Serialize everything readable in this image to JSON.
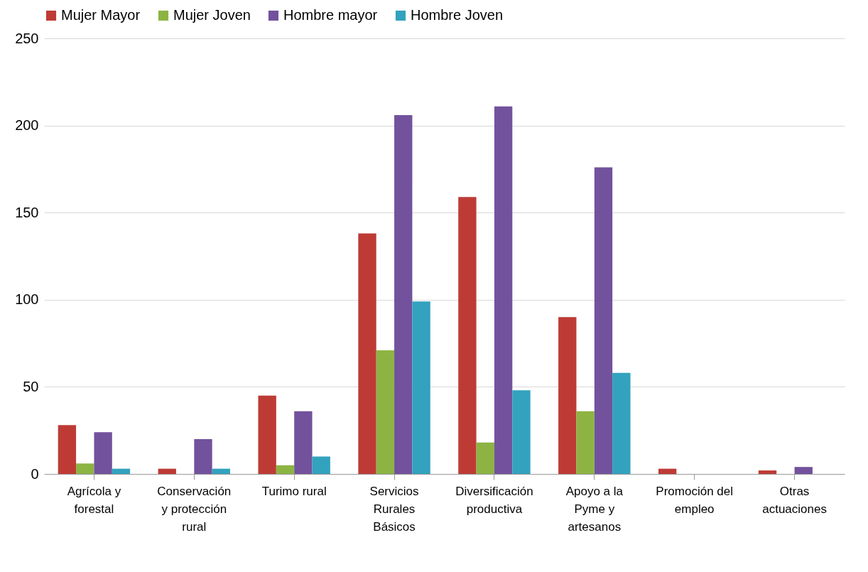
{
  "chart_data": {
    "type": "bar",
    "categories": [
      "Agrícola y forestal",
      "Conservación y protección rural",
      "Turimo rural",
      "Servicios Rurales Básicos",
      "Diversificación productiva",
      "Apoyo a la Pyme y artesanos",
      "Promoción del empleo",
      "Otras actuaciones"
    ],
    "series": [
      {
        "name": "Mujer Mayor",
        "color": "#be3b35",
        "values": [
          28,
          3,
          45,
          138,
          159,
          90,
          3,
          2
        ]
      },
      {
        "name": "Mujer Joven",
        "color": "#8db443",
        "values": [
          6,
          0,
          5,
          71,
          18,
          36,
          0,
          0
        ]
      },
      {
        "name": "Hombre mayor",
        "color": "#72529c",
        "values": [
          24,
          20,
          36,
          206,
          211,
          176,
          0,
          4
        ]
      },
      {
        "name": "Hombre Joven",
        "color": "#32a2be",
        "values": [
          3,
          3,
          10,
          99,
          48,
          58,
          0,
          0
        ]
      }
    ],
    "ylim": [
      0,
      250
    ],
    "yticks": [
      0,
      50,
      100,
      150,
      200,
      250
    ],
    "grid": "y",
    "legend": "top"
  }
}
